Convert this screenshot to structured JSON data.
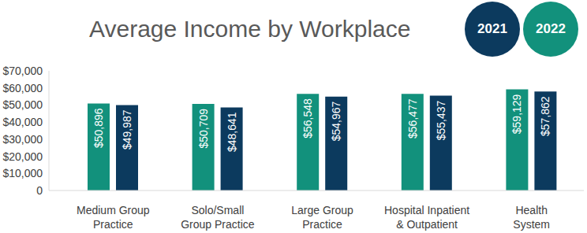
{
  "chart_data": {
    "type": "bar",
    "title": "Average Income by Workplace",
    "categories": [
      "Medium Group Practice",
      "Solo/Small Group Practice",
      "Large Group Practice",
      "Hospital Inpatient & Outpatient",
      "Health System"
    ],
    "series": [
      {
        "name": "2022",
        "color": "#12917c",
        "values": [
          50896,
          50709,
          56548,
          56477,
          59129
        ],
        "value_labels": [
          "$50,896",
          "$50,709",
          "$56,548",
          "$56,477",
          "$59,129"
        ]
      },
      {
        "name": "2021",
        "color": "#0c3a5e",
        "values": [
          49987,
          48641,
          54967,
          55437,
          57862
        ],
        "value_labels": [
          "$49,987",
          "$48,641",
          "$54,967",
          "$55,437",
          "$57,862"
        ]
      }
    ],
    "ylim": [
      0,
      70000
    ],
    "yticks": [
      0,
      {
        "value": 10000,
        "label": "$10,000"
      },
      {
        "value": 20000,
        "label": "$20,000"
      },
      {
        "value": 30000,
        "label": "$30,000"
      },
      {
        "value": 40000,
        "label": "$40,000"
      },
      {
        "value": 50000,
        "label": "$50,000"
      },
      {
        "value": 60000,
        "label": "$60,000"
      },
      {
        "value": 70000,
        "label": "$70,000"
      }
    ],
    "data_labels": true,
    "legend": "top right",
    "grid": false
  }
}
